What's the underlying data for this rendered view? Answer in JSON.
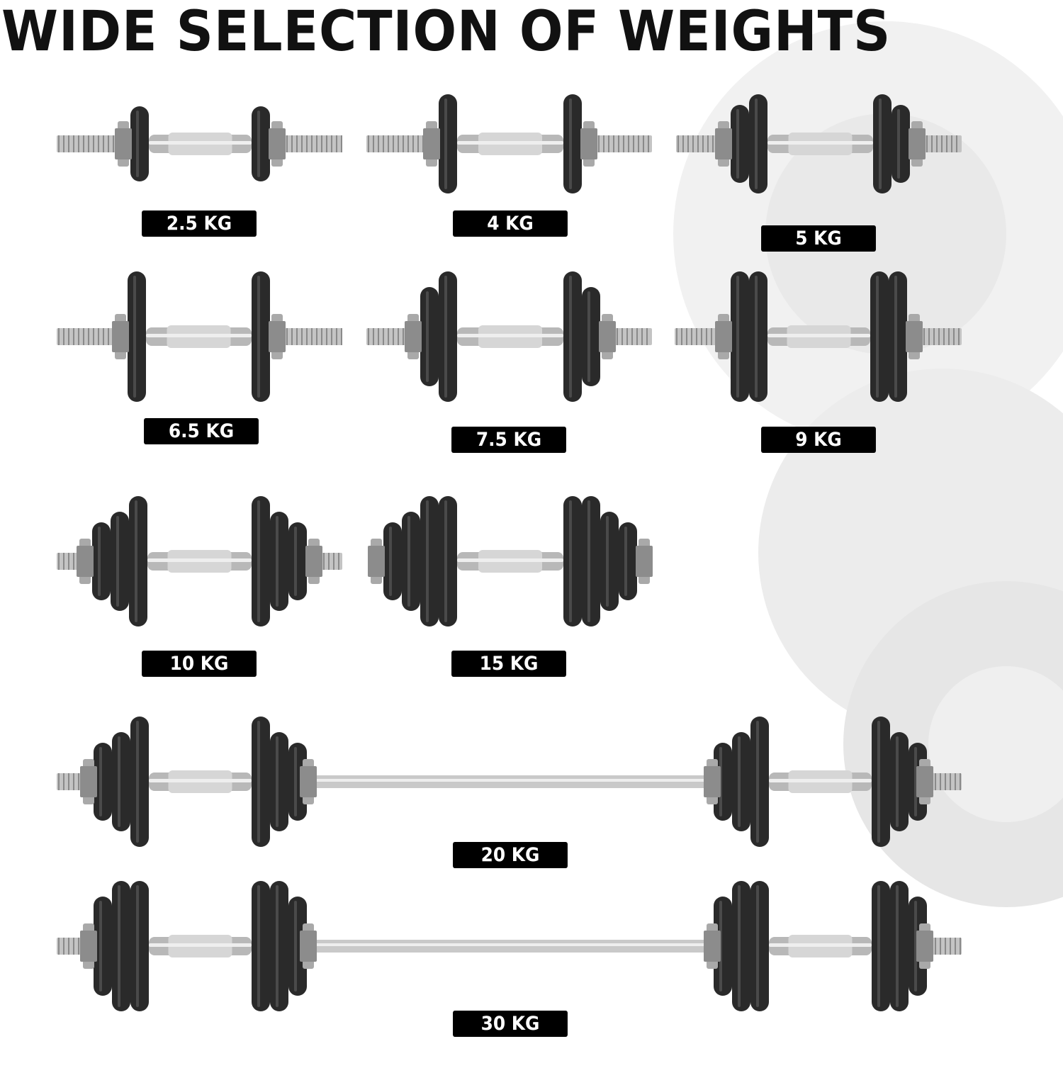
{
  "title": "WIDE SELECTION OF WEIGHTS",
  "weights": [
    {
      "label": "2.5 KG",
      "type": "dumbbell"
    },
    {
      "label": "4 KG",
      "type": "dumbbell"
    },
    {
      "label": "5 KG",
      "type": "dumbbell"
    },
    {
      "label": "6.5 KG",
      "type": "dumbbell"
    },
    {
      "label": "7.5 KG",
      "type": "dumbbell"
    },
    {
      "label": "9 KG",
      "type": "dumbbell"
    },
    {
      "label": "10 KG",
      "type": "dumbbell"
    },
    {
      "label": "15 KG",
      "type": "dumbbell"
    },
    {
      "label": "20 KG",
      "type": "barbell"
    },
    {
      "label": "30 KG",
      "type": "barbell"
    }
  ],
  "colors": {
    "plate": "#2a2a2a",
    "label_bg": "#000000",
    "label_text": "#ffffff",
    "chrome": "#b8b8b8"
  }
}
